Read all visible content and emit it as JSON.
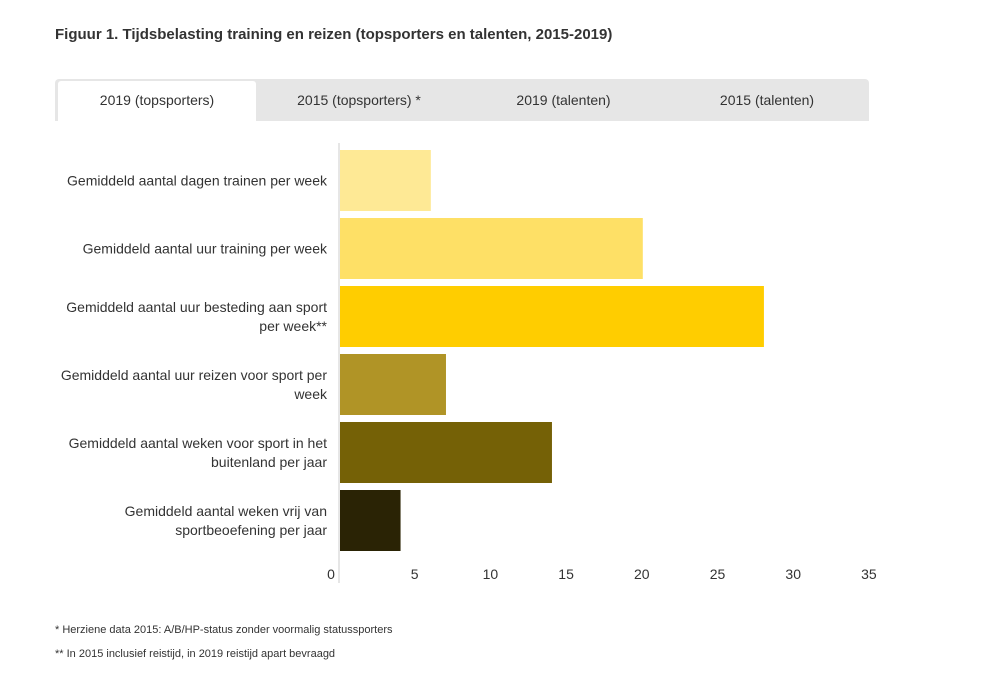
{
  "title": "Figuur 1. Tijdsbelasting training en reizen (topsporters en talenten, 2015-2019)",
  "tabs": [
    {
      "label": "2019 (topsporters)",
      "active": true
    },
    {
      "label": "2015 (topsporters) *",
      "active": false
    },
    {
      "label": "2019 (talenten)",
      "active": false
    },
    {
      "label": "2015 (talenten)",
      "active": false
    }
  ],
  "chart_data": {
    "type": "bar",
    "orientation": "horizontal",
    "categories": [
      [
        "Gemiddeld aantal dagen trainen per week"
      ],
      [
        "Gemiddeld aantal uur training per week"
      ],
      [
        "Gemiddeld aantal uur besteding aan sport",
        "per week**"
      ],
      [
        "Gemiddeld aantal uur reizen voor sport per",
        "week"
      ],
      [
        "Gemiddeld aantal weken voor sport in het",
        "buitenland per jaar"
      ],
      [
        "Gemiddeld aantal weken vrij van",
        "sportbeoefening per jaar"
      ]
    ],
    "values": [
      6,
      20,
      28,
      7,
      14,
      4
    ],
    "colors": [
      "#fee995",
      "#fee066",
      "#ffcd00",
      "#b09426",
      "#756106",
      "#2a2305"
    ],
    "xlim": [
      0,
      35
    ],
    "xticks": [
      "0",
      "5",
      "10",
      "15",
      "20",
      "25",
      "30",
      "35"
    ],
    "xlabel": "",
    "ylabel": "",
    "grid": false
  },
  "footnotes": [
    "* Herziene data 2015: A/B/HP-status zonder voormalig statussporters",
    "** In 2015 inclusief reistijd, in 2019 reistijd apart bevraagd"
  ]
}
